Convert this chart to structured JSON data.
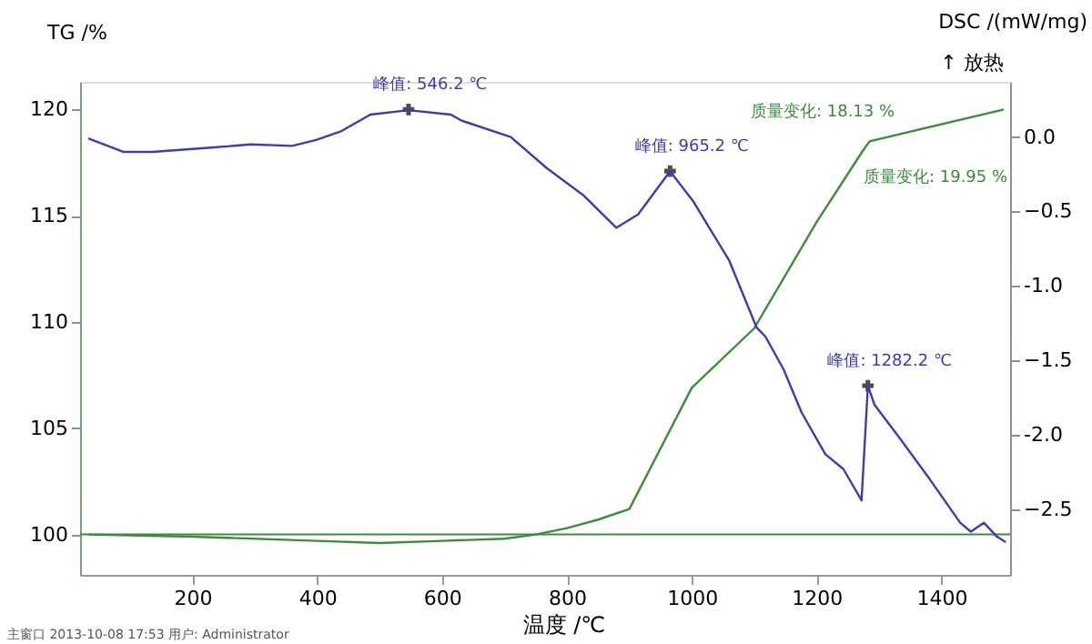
{
  "chart_data": {
    "type": "line",
    "xlabel": "温度 /℃",
    "ylabel": "TG /%",
    "y2label": "DSC /(mW/mg)",
    "xlim": [
      20,
      1510
    ],
    "xticks": [
      200,
      400,
      600,
      800,
      1000,
      1200,
      {
        "value": 1400,
        "label": "1400"
      }
    ],
    "ylim": [
      98.1,
      121.3
    ],
    "yticks": [
      100,
      105,
      110,
      115,
      120
    ],
    "y2lim": [
      -2.94,
      0.37
    ],
    "y2ticks": [
      {
        "value": 0,
        "label": "0.0"
      },
      -0.5,
      {
        "value": -1,
        "label": "-1.0"
      },
      -1.5,
      {
        "value": -2,
        "label": "-2.0"
      },
      -2.5
    ],
    "grid": false,
    "marker": "none",
    "line_style": "solid",
    "series": [
      {
        "color": "#3c8c3c",
        "axis": "y",
        "x": [
          33,
          200,
          400,
          500,
          600,
          700,
          750,
          800,
          850,
          900,
          1000,
          1100,
          1200,
          1275,
          1285,
          1500
        ],
        "values": [
          100.0,
          99.9,
          99.7,
          99.6,
          99.7,
          99.8,
          100.0,
          100.3,
          100.7,
          101.2,
          106.9,
          109.7,
          114.7,
          118.1,
          118.5,
          120.0
        ]
      },
      {
        "color": "#3c3cb4",
        "axis": "y2",
        "x": [
          33,
          89,
          136,
          235,
          293,
          360,
          398,
          439,
          485,
          546.2,
          614,
          631,
          710,
          768,
          826,
          879,
          914,
          965.2,
          1002,
          1060,
          1104,
          1118,
          1147,
          1176,
          1214,
          1243,
          1272,
          1282.2,
          1293,
          1331,
          1380,
          1430,
          1447,
          1468,
          1488,
          1503
        ],
        "values": [
          -0.01,
          -0.1,
          -0.1,
          -0.07,
          -0.05,
          -0.06,
          -0.02,
          0.04,
          0.15,
          0.18,
          0.15,
          0.11,
          0.0,
          -0.21,
          -0.39,
          -0.61,
          -0.52,
          -0.23,
          -0.43,
          -0.83,
          -1.28,
          -1.34,
          -1.56,
          -1.85,
          -2.13,
          -2.23,
          -2.44,
          -1.67,
          -1.8,
          -2.01,
          -2.29,
          -2.59,
          -2.65,
          -2.59,
          -2.68,
          -2.72
        ]
      }
    ],
    "ref_lines": [
      {
        "axis": "y",
        "value": 100,
        "color": "#3c8c3c"
      }
    ],
    "annotations": [
      {
        "text": "峰值: 546.2 ℃",
        "x": 546.2,
        "y": 120.0
      },
      {
        "text": "峰值: 965.2 ℃",
        "x": 965.2,
        "y": 117.1
      },
      {
        "text": "峰值: 1282.2 ℃",
        "x": 1282.2,
        "y": 107.0
      },
      "质量变化: 18.13 %",
      "质量变化: 19.95 %",
      "↑ 放热",
      "主窗口   2013-10-08 17:53   用户: Administrator"
    ]
  }
}
